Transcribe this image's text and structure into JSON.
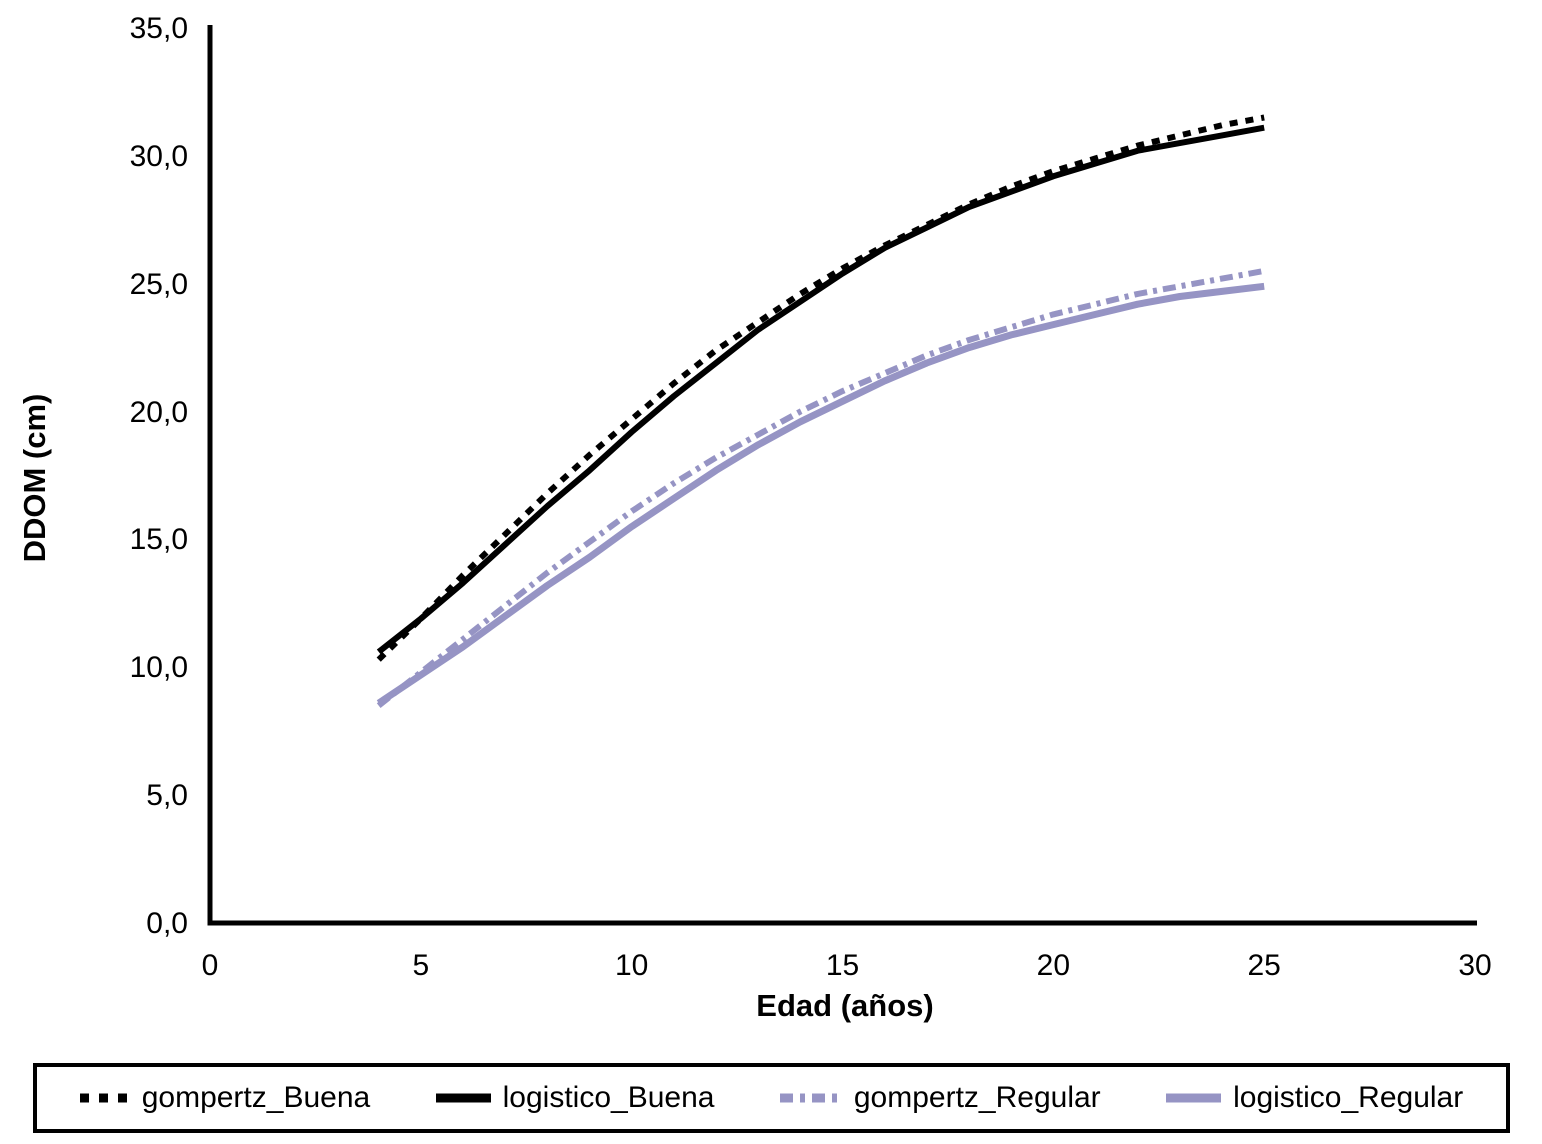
{
  "chart_data": {
    "type": "line",
    "title": "",
    "xlabel": "Edad (años)",
    "ylabel": "DDOM (cm)",
    "xlim": [
      0,
      30
    ],
    "ylim": [
      0,
      35
    ],
    "grid": false,
    "legend_position": "bottom",
    "x_ticks": {
      "values": [
        0,
        5,
        10,
        15,
        20,
        25,
        30
      ],
      "labels": [
        "0",
        "5",
        "10",
        "15",
        "20",
        "25",
        "30"
      ]
    },
    "y_ticks": {
      "values": [
        0,
        5,
        10,
        15,
        20,
        25,
        30,
        35
      ],
      "labels": [
        "0,0",
        "5,0",
        "10,0",
        "15,0",
        "20,0",
        "25,0",
        "30,0",
        "35,0"
      ]
    },
    "x": [
      4,
      5,
      6,
      7,
      8,
      9,
      10,
      11,
      12,
      13,
      14,
      15,
      16,
      17,
      18,
      19,
      20,
      21,
      22,
      23,
      24,
      25
    ],
    "series": [
      {
        "name": "logistico_Buena",
        "color": "#000000",
        "style": "solid",
        "dash": "",
        "width": 6,
        "values": [
          10.6,
          11.9,
          13.3,
          14.8,
          16.3,
          17.7,
          19.2,
          20.6,
          21.9,
          23.2,
          24.3,
          25.4,
          26.4,
          27.2,
          28.0,
          28.6,
          29.2,
          29.7,
          30.2,
          30.5,
          30.8,
          31.1
        ]
      },
      {
        "name": "logistico_Regular",
        "color": "#9694C4",
        "style": "solid",
        "dash": "",
        "width": 7,
        "values": [
          8.6,
          9.7,
          10.8,
          12.0,
          13.2,
          14.3,
          15.5,
          16.6,
          17.7,
          18.7,
          19.6,
          20.4,
          21.2,
          21.9,
          22.5,
          23.0,
          23.4,
          23.8,
          24.2,
          24.5,
          24.7,
          24.9
        ]
      },
      {
        "name": "gompertz_Buena",
        "color": "#000000",
        "style": "square-dot",
        "dash": "8 8",
        "width": 6,
        "values": [
          10.3,
          11.9,
          13.6,
          15.2,
          16.8,
          18.3,
          19.7,
          21.1,
          22.4,
          23.5,
          24.6,
          25.6,
          26.5,
          27.3,
          28.1,
          28.8,
          29.4,
          29.9,
          30.4,
          30.8,
          31.2,
          31.5
        ]
      },
      {
        "name": "gompertz_Regular",
        "color": "#9694C4",
        "style": "dash-dot",
        "dash": "13 6 4 6",
        "width": 6,
        "values": [
          8.5,
          9.8,
          11.1,
          12.4,
          13.7,
          14.9,
          16.1,
          17.2,
          18.2,
          19.1,
          20.0,
          20.8,
          21.5,
          22.2,
          22.8,
          23.3,
          23.8,
          24.2,
          24.6,
          24.9,
          25.2,
          25.5
        ]
      }
    ]
  },
  "legend": {
    "items": [
      {
        "label": "gompertz_Buena",
        "color": "#000000",
        "dash": "9 10"
      },
      {
        "label": "logistico_Buena",
        "color": "#000000",
        "dash": ""
      },
      {
        "label": "gompertz_Regular",
        "color": "#9694C4",
        "dash": "13 7 5 7"
      },
      {
        "label": "logistico_Regular",
        "color": "#9694C4",
        "dash": ""
      }
    ]
  },
  "axis_color": "#000000"
}
